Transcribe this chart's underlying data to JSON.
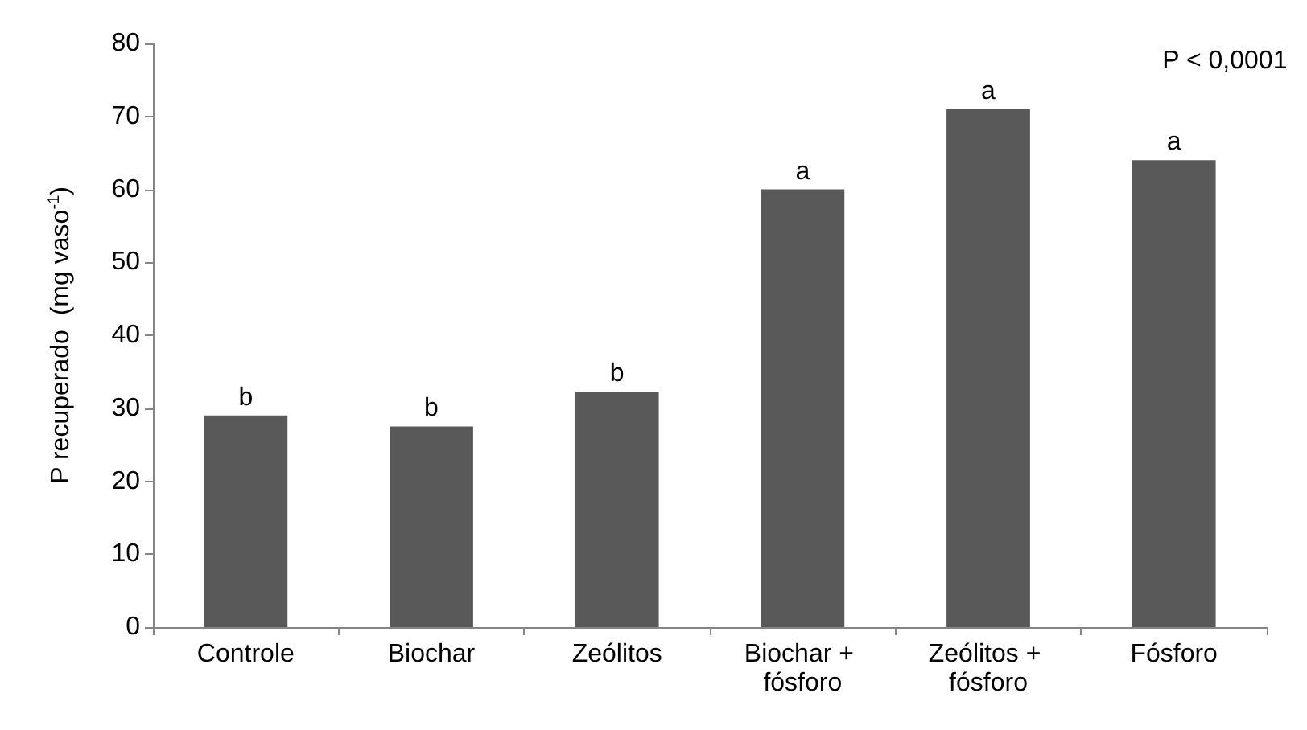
{
  "chart_data": {
    "type": "bar",
    "categories": [
      "Controle",
      "Biochar",
      "Zeólitos",
      "Biochar + fósforo",
      "Zeólitos + fósforo",
      "Fósforo"
    ],
    "values": [
      29,
      27.5,
      32.3,
      60,
      71,
      64
    ],
    "color": "#595959",
    "ylabel": "P recuperado  (mg vaso$^{-1}$)",
    "ylim": [
      0,
      80
    ],
    "yticks": [
      0,
      10,
      20,
      30,
      40,
      50,
      60,
      70,
      80
    ],
    "annotations": [
      "P < 0,0001",
      {
        "text": "b",
        "x": "Controle",
        "y": 29
      },
      {
        "text": "b",
        "x": "Biochar",
        "y": 27.5
      },
      {
        "text": "b",
        "x": "Zeólitos",
        "y": 32.3
      },
      {
        "text": "a",
        "x": "Biochar + fósforo",
        "y": 60
      },
      {
        "text": "a",
        "x": "Zeólitos + fósforo",
        "y": 71
      },
      {
        "text": "a",
        "x": "Fósforo",
        "y": 64
      }
    ]
  }
}
